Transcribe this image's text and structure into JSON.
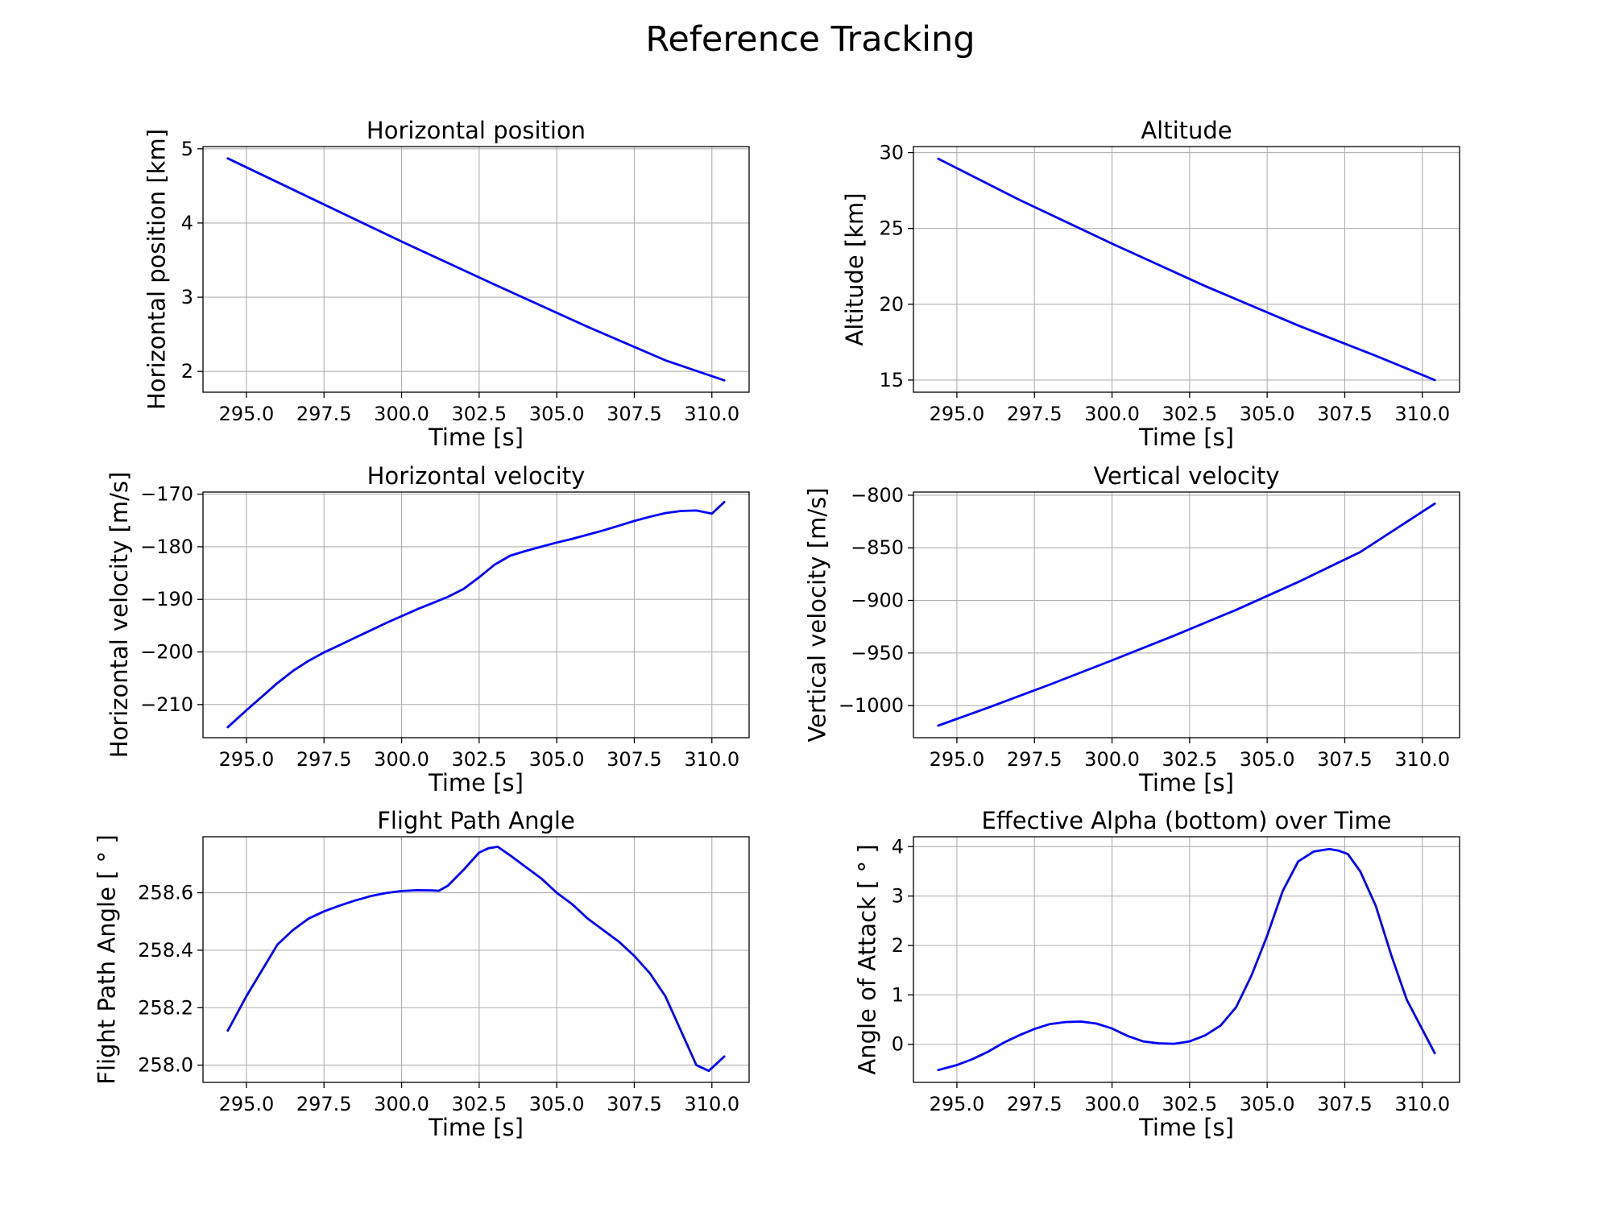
{
  "figure": {
    "title": "Reference Tracking",
    "line_color": "#0000ff"
  },
  "chart_data": [
    {
      "type": "line",
      "title": "Horizontal position",
      "xlabel": "Time [s]",
      "ylabel": "Horizontal position [km]",
      "xlim": [
        293.6,
        311.2
      ],
      "ylim": [
        1.72,
        5.03
      ],
      "xticks": [
        295.0,
        297.5,
        300.0,
        302.5,
        305.0,
        307.5,
        310.0
      ],
      "xtick_labels": [
        "295.0",
        "297.5",
        "300.0",
        "302.5",
        "305.0",
        "307.5",
        "310.0"
      ],
      "yticks": [
        2,
        3,
        4,
        5
      ],
      "ytick_labels": [
        "2",
        "3",
        "4",
        "5"
      ],
      "grid": true,
      "series": [
        {
          "x": [
            294.4,
            297.0,
            300.0,
            303.0,
            306.0,
            308.5,
            310.4
          ],
          "y": [
            4.87,
            4.35,
            3.75,
            3.17,
            2.6,
            2.15,
            1.88
          ]
        }
      ]
    },
    {
      "type": "line",
      "title": "Altitude",
      "xlabel": "Time [s]",
      "ylabel": "Altitude [km]",
      "xlim": [
        293.6,
        311.2
      ],
      "ylim": [
        14.2,
        30.4
      ],
      "xticks": [
        295.0,
        297.5,
        300.0,
        302.5,
        305.0,
        307.5,
        310.0
      ],
      "xtick_labels": [
        "295.0",
        "297.5",
        "300.0",
        "302.5",
        "305.0",
        "307.5",
        "310.0"
      ],
      "yticks": [
        15,
        20,
        25,
        30
      ],
      "ytick_labels": [
        "15",
        "20",
        "25",
        "30"
      ],
      "grid": true,
      "series": [
        {
          "x": [
            294.4,
            297.0,
            300.0,
            303.0,
            306.0,
            308.5,
            310.4
          ],
          "y": [
            29.6,
            26.9,
            24.0,
            21.2,
            18.6,
            16.6,
            15.0
          ]
        }
      ]
    },
    {
      "type": "line",
      "title": "Horizontal velocity",
      "xlabel": "Time [s]",
      "ylabel": "Horizontal velocity [m/s]",
      "xlim": [
        293.6,
        311.2
      ],
      "ylim": [
        -216.3,
        -169.6
      ],
      "xticks": [
        295.0,
        297.5,
        300.0,
        302.5,
        305.0,
        307.5,
        310.0
      ],
      "xtick_labels": [
        "295.0",
        "297.5",
        "300.0",
        "302.5",
        "305.0",
        "307.5",
        "310.0"
      ],
      "yticks": [
        -210,
        -200,
        -190,
        -180,
        -170
      ],
      "ytick_labels": [
        "−210",
        "−200",
        "−190",
        "−180",
        "−170"
      ],
      "grid": true,
      "series": [
        {
          "x": [
            294.4,
            295.0,
            295.5,
            296.0,
            296.5,
            297.0,
            297.5,
            298.0,
            298.5,
            299.0,
            299.5,
            300.0,
            300.5,
            301.0,
            301.5,
            302.0,
            302.5,
            303.0,
            303.5,
            304.0,
            304.5,
            305.0,
            305.5,
            306.0,
            306.5,
            307.0,
            307.5,
            308.0,
            308.5,
            309.0,
            309.5,
            310.0,
            310.4
          ],
          "y": [
            -214.3,
            -211.1,
            -208.5,
            -205.9,
            -203.6,
            -201.7,
            -200.1,
            -198.7,
            -197.3,
            -195.9,
            -194.5,
            -193.2,
            -191.9,
            -190.7,
            -189.5,
            -188.0,
            -185.8,
            -183.4,
            -181.7,
            -180.8,
            -180.0,
            -179.2,
            -178.5,
            -177.7,
            -176.9,
            -176.0,
            -175.1,
            -174.3,
            -173.6,
            -173.2,
            -173.1,
            -173.7,
            -171.5
          ]
        }
      ]
    },
    {
      "type": "line",
      "title": "Vertical velocity",
      "xlabel": "Time [s]",
      "ylabel": "Vertical velocity [m/s]",
      "xlim": [
        293.6,
        311.2
      ],
      "ylim": [
        -1030.5,
        -797.0
      ],
      "xticks": [
        295.0,
        297.5,
        300.0,
        302.5,
        305.0,
        307.5,
        310.0
      ],
      "xtick_labels": [
        "295.0",
        "297.5",
        "300.0",
        "302.5",
        "305.0",
        "307.5",
        "310.0"
      ],
      "yticks": [
        -1000,
        -950,
        -900,
        -850,
        -800
      ],
      "ytick_labels": [
        "−1000",
        "−950",
        "−900",
        "−850",
        "−800"
      ],
      "grid": true,
      "series": [
        {
          "x": [
            294.4,
            296.0,
            298.0,
            300.0,
            302.0,
            304.0,
            306.0,
            308.0,
            310.4
          ],
          "y": [
            -1019.0,
            -1002.0,
            -980.0,
            -957.0,
            -933.5,
            -909.0,
            -882.5,
            -854.0,
            -808.0
          ]
        }
      ]
    },
    {
      "type": "line",
      "title": "Flight Path Angle",
      "xlabel": "Time [s]",
      "ylabel": "Flight Path Angle [$^\\circ$]",
      "ylabel_display": "Flight Path Angle [ ° ]",
      "xlim": [
        293.6,
        311.2
      ],
      "ylim": [
        257.94,
        258.795
      ],
      "xticks": [
        295.0,
        297.5,
        300.0,
        302.5,
        305.0,
        307.5,
        310.0
      ],
      "xtick_labels": [
        "295.0",
        "297.5",
        "300.0",
        "302.5",
        "305.0",
        "307.5",
        "310.0"
      ],
      "yticks": [
        258.0,
        258.2,
        258.4,
        258.6
      ],
      "ytick_labels": [
        "258.0",
        "258.2",
        "258.4",
        "258.6"
      ],
      "grid": true,
      "series": [
        {
          "x": [
            294.4,
            295.0,
            295.5,
            296.0,
            296.5,
            297.0,
            297.5,
            298.0,
            298.5,
            299.0,
            299.5,
            300.0,
            300.5,
            301.0,
            301.2,
            301.5,
            302.0,
            302.5,
            302.8,
            303.1,
            303.5,
            304.0,
            304.5,
            305.0,
            305.5,
            306.0,
            306.5,
            307.0,
            307.5,
            308.0,
            308.5,
            309.0,
            309.5,
            309.9,
            310.4
          ],
          "y": [
            258.12,
            258.24,
            258.33,
            258.42,
            258.47,
            258.51,
            258.535,
            258.555,
            258.573,
            258.588,
            258.599,
            258.606,
            258.609,
            258.608,
            258.607,
            258.625,
            258.68,
            258.74,
            258.755,
            258.76,
            258.73,
            258.69,
            258.65,
            258.6,
            258.56,
            258.51,
            258.47,
            258.43,
            258.38,
            258.32,
            258.24,
            258.12,
            258.0,
            257.98,
            258.03
          ]
        }
      ]
    },
    {
      "type": "line",
      "title": "Effective Alpha (bottom) over Time",
      "xlabel": "Time [s]",
      "ylabel": "Angle of Attack [$^\\circ$]",
      "ylabel_display": "Angle of Attack [ ° ]",
      "xlim": [
        293.6,
        311.2
      ],
      "ylim": [
        -0.77,
        4.2
      ],
      "xticks": [
        295.0,
        297.5,
        300.0,
        302.5,
        305.0,
        307.5,
        310.0
      ],
      "xtick_labels": [
        "295.0",
        "297.5",
        "300.0",
        "302.5",
        "305.0",
        "307.5",
        "310.0"
      ],
      "yticks": [
        0,
        1,
        2,
        3,
        4
      ],
      "ytick_labels": [
        "0",
        "1",
        "2",
        "3",
        "4"
      ],
      "grid": true,
      "series": [
        {
          "x": [
            294.4,
            295.0,
            295.5,
            296.0,
            296.5,
            297.0,
            297.5,
            298.0,
            298.5,
            299.0,
            299.5,
            300.0,
            300.5,
            301.0,
            301.5,
            302.0,
            302.5,
            303.0,
            303.5,
            304.0,
            304.5,
            305.0,
            305.5,
            306.0,
            306.5,
            307.0,
            307.3,
            307.6,
            308.0,
            308.5,
            309.0,
            309.5,
            310.0,
            310.4
          ],
          "y": [
            -0.52,
            -0.42,
            -0.3,
            -0.15,
            0.03,
            0.18,
            0.31,
            0.41,
            0.45,
            0.46,
            0.42,
            0.32,
            0.17,
            0.06,
            0.02,
            0.01,
            0.06,
            0.18,
            0.38,
            0.75,
            1.4,
            2.2,
            3.1,
            3.7,
            3.9,
            3.95,
            3.92,
            3.85,
            3.5,
            2.8,
            1.8,
            0.9,
            0.3,
            -0.18
          ]
        }
      ]
    }
  ]
}
